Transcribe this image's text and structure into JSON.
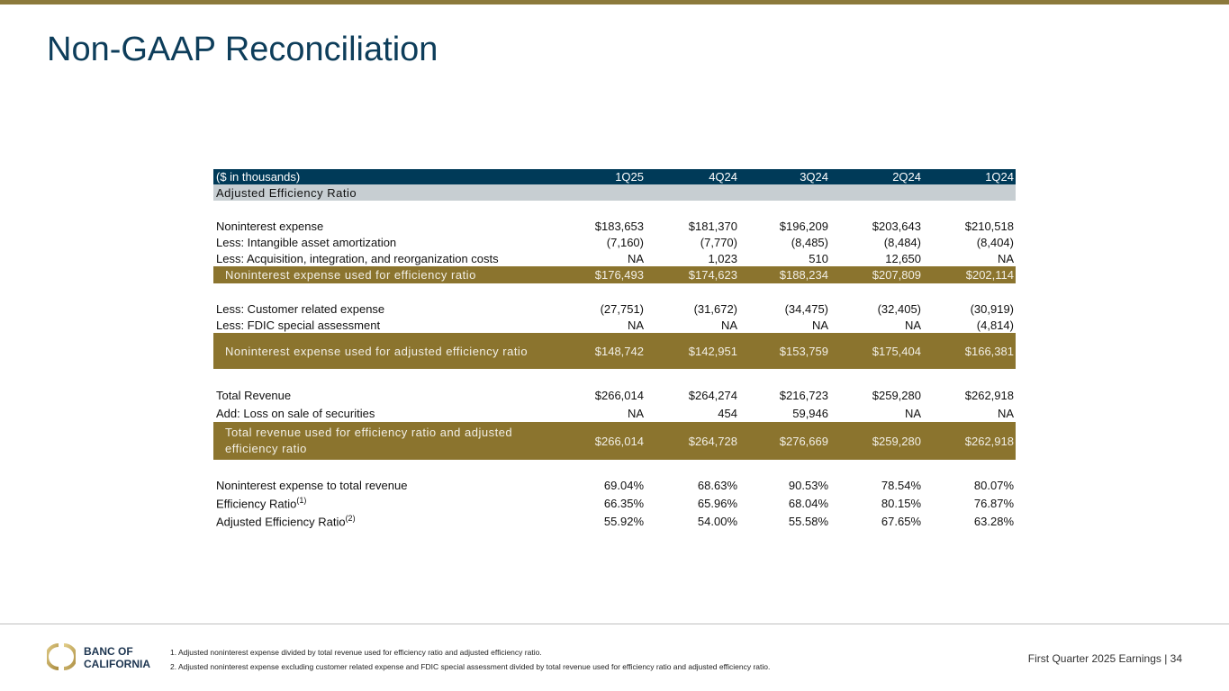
{
  "title": "Non-GAAP Reconciliation",
  "colors": {
    "navy": "#003a58",
    "gold": "#8b742e",
    "gray": "#c7ced2",
    "title": "#0d3d5a"
  },
  "table": {
    "unit_label": "($ in thousands)",
    "columns": [
      "1Q25",
      "4Q24",
      "3Q24",
      "2Q24",
      "1Q24"
    ],
    "section": "Adjusted Efficiency Ratio",
    "rows": [
      {
        "label": "Noninterest expense",
        "values": [
          "$183,653",
          "$181,370",
          "$196,209",
          "$203,643",
          "$210,518"
        ]
      },
      {
        "label": "Less: Intangible asset amortization",
        "values": [
          "(7,160)",
          "(7,770)",
          "(8,485)",
          "(8,484)",
          "(8,404)"
        ]
      },
      {
        "label": "Less: Acquisition, integration, and reorganization costs",
        "values": [
          "NA",
          "1,023",
          "510",
          "12,650",
          "NA"
        ]
      },
      {
        "label": "Noninterest expense used for efficiency ratio",
        "values": [
          "$176,493",
          "$174,623",
          "$188,234",
          "$207,809",
          "$202,114"
        ]
      },
      {
        "label": "Less: Customer related expense",
        "values": [
          "(27,751)",
          "(31,672)",
          "(34,475)",
          "(32,405)",
          "(30,919)"
        ]
      },
      {
        "label": "Less: FDIC special assessment",
        "values": [
          "NA",
          "NA",
          "NA",
          "NA",
          "(4,814)"
        ]
      },
      {
        "label": "Noninterest expense used for adjusted efficiency ratio",
        "values": [
          "$148,742",
          "$142,951",
          "$153,759",
          "$175,404",
          "$166,381"
        ]
      },
      {
        "label": "Total Revenue",
        "values": [
          "$266,014",
          "$264,274",
          "$216,723",
          "$259,280",
          "$262,918"
        ]
      },
      {
        "label": "Add: Loss on sale of securities",
        "values": [
          "NA",
          "454",
          "59,946",
          "NA",
          "NA"
        ]
      },
      {
        "label": "Total revenue used for efficiency ratio and adjusted efficiency ratio",
        "values": [
          "$266,014",
          "$264,728",
          "$276,669",
          "$259,280",
          "$262,918"
        ]
      },
      {
        "label": "Noninterest expense to total revenue",
        "values": [
          "69.04%",
          "68.63%",
          "90.53%",
          "78.54%",
          "80.07%"
        ]
      },
      {
        "label": "Efficiency Ratio",
        "sup": "(1)",
        "values": [
          "66.35%",
          "65.96%",
          "68.04%",
          "80.15%",
          "76.87%"
        ]
      },
      {
        "label": "Adjusted Efficiency Ratio",
        "sup": "(2)",
        "values": [
          "55.92%",
          "54.00%",
          "55.58%",
          "67.65%",
          "63.28%"
        ]
      }
    ]
  },
  "footer": {
    "logo_text": "BANC OF CALIFORNIA",
    "logo_line1": "BANC OF",
    "logo_line2": "CALIFORNIA",
    "notes": [
      "1.  Adjusted noninterest expense divided by total revenue used for efficiency ratio and adjusted efficiency ratio.",
      "2.  Adjusted noninterest expense excluding customer related expense and FDIC special assessment divided by total revenue used for efficiency ratio and adjusted efficiency ratio."
    ],
    "page_label": "First Quarter 2025 Earnings |  34"
  }
}
